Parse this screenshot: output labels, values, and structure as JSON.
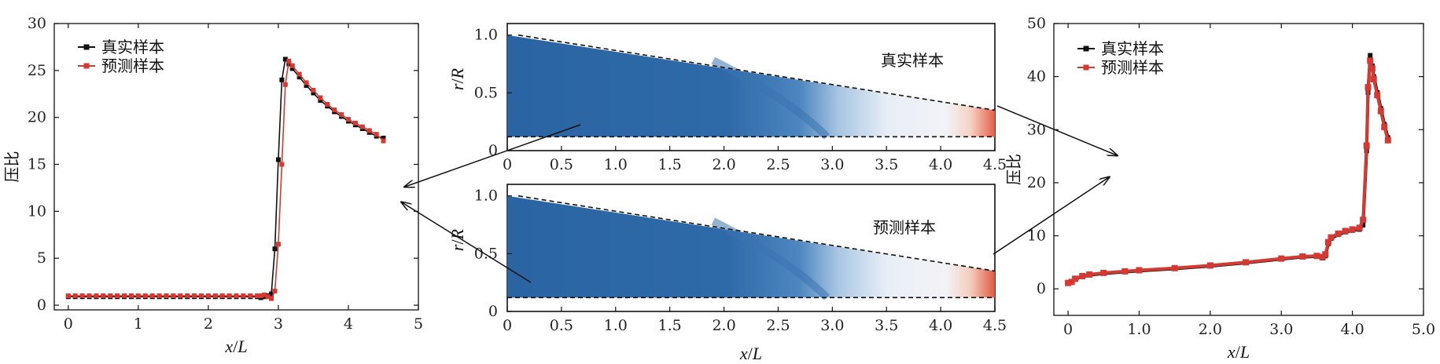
{
  "colors": {
    "true_series": "#111111",
    "pred_series": "#d23b33",
    "contour_dark": "#2a64a3",
    "contour_light": "#f6f7f9",
    "contour_warm": "#e5604a"
  },
  "chart_data": [
    {
      "type": "line",
      "xlabel": "x/L",
      "ylabel": "压比",
      "xlim": [
        -0.2,
        5
      ],
      "ylim": [
        -0.5,
        30
      ],
      "xticks": [
        "0",
        "1",
        "2",
        "3",
        "4",
        "5"
      ],
      "yticks": [
        "0",
        "5",
        "10",
        "15",
        "20",
        "25",
        "30"
      ],
      "legend": "top-left",
      "series": [
        {
          "name": "真实样本",
          "color": "#111111",
          "x": [
            0,
            0.1,
            0.2,
            0.3,
            0.4,
            0.5,
            0.6,
            0.7,
            0.8,
            0.9,
            1.0,
            1.1,
            1.2,
            1.3,
            1.4,
            1.5,
            1.6,
            1.7,
            1.8,
            1.9,
            2.0,
            2.1,
            2.2,
            2.3,
            2.4,
            2.5,
            2.6,
            2.7,
            2.75,
            2.8,
            2.85,
            2.9,
            2.95,
            3.0,
            3.05,
            3.1,
            3.15,
            3.2,
            3.3,
            3.4,
            3.5,
            3.6,
            3.7,
            3.8,
            3.9,
            4.0,
            4.1,
            4.2,
            4.3,
            4.4,
            4.5
          ],
          "y": [
            0.9,
            0.9,
            0.9,
            0.9,
            0.9,
            0.9,
            0.9,
            0.9,
            0.9,
            0.9,
            0.9,
            0.9,
            0.9,
            0.9,
            0.9,
            0.9,
            0.9,
            0.9,
            0.9,
            0.9,
            0.9,
            0.9,
            0.9,
            0.9,
            0.9,
            0.9,
            0.9,
            0.9,
            0.8,
            0.9,
            1.0,
            1.2,
            6.0,
            15.5,
            24.0,
            26.2,
            25.7,
            25.2,
            24.3,
            23.4,
            22.6,
            21.8,
            21.2,
            20.6,
            20.1,
            19.6,
            19.2,
            18.8,
            18.4,
            18.0,
            17.8
          ]
        },
        {
          "name": "预测样本",
          "color": "#d23b33",
          "x": [
            0,
            0.1,
            0.2,
            0.3,
            0.4,
            0.5,
            0.6,
            0.7,
            0.8,
            0.9,
            1.0,
            1.1,
            1.2,
            1.3,
            1.4,
            1.5,
            1.6,
            1.7,
            1.8,
            1.9,
            2.0,
            2.1,
            2.2,
            2.3,
            2.4,
            2.5,
            2.6,
            2.7,
            2.75,
            2.8,
            2.85,
            2.9,
            2.95,
            3.0,
            3.05,
            3.1,
            3.15,
            3.2,
            3.3,
            3.4,
            3.5,
            3.6,
            3.7,
            3.8,
            3.9,
            4.0,
            4.1,
            4.2,
            4.3,
            4.4,
            4.5
          ],
          "y": [
            1.0,
            1.0,
            1.0,
            1.0,
            1.0,
            1.0,
            1.0,
            1.0,
            1.0,
            1.0,
            1.0,
            1.0,
            1.0,
            1.0,
            1.0,
            1.0,
            1.0,
            1.0,
            1.0,
            1.0,
            1.0,
            1.0,
            1.0,
            1.0,
            1.0,
            1.0,
            1.0,
            1.0,
            1.0,
            1.1,
            0.9,
            0.7,
            1.5,
            6.5,
            15.0,
            23.5,
            26.0,
            25.5,
            24.6,
            23.7,
            22.9,
            22.1,
            21.4,
            20.8,
            20.3,
            19.8,
            19.4,
            19.0,
            18.6,
            18.2,
            17.5
          ]
        }
      ]
    },
    {
      "type": "heatmap",
      "title": "真实样本",
      "xlabel": "x/L",
      "ylabel": "r/R",
      "xlim": [
        0,
        4.5
      ],
      "ylim": [
        0,
        1.1
      ],
      "xticks": [
        "0",
        "0.5",
        "1.0",
        "1.5",
        "2.0",
        "2.5",
        "3.0",
        "3.5",
        "4.0",
        "4.5"
      ],
      "yticks": [
        "0",
        "0.5",
        "1.0"
      ],
      "upper_wall": [
        [
          0,
          1.0
        ],
        [
          4.5,
          0.35
        ]
      ],
      "lower_wall": [
        [
          0,
          0.12
        ],
        [
          4.5,
          0.12
        ]
      ]
    },
    {
      "type": "heatmap",
      "title": "预测样本",
      "xlabel": "x/L",
      "ylabel": "r/R",
      "xlim": [
        0,
        4.5
      ],
      "ylim": [
        0,
        1.1
      ],
      "xticks": [
        "0",
        "0.5",
        "1.0",
        "1.5",
        "2.0",
        "2.5",
        "3.0",
        "3.5",
        "4.0",
        "4.5"
      ],
      "yticks": [
        "0",
        "0.5",
        "1.0"
      ],
      "upper_wall": [
        [
          0,
          1.0
        ],
        [
          4.5,
          0.35
        ]
      ],
      "lower_wall": [
        [
          0,
          0.12
        ],
        [
          4.5,
          0.12
        ]
      ]
    },
    {
      "type": "line",
      "xlabel": "x/L",
      "ylabel": "压比",
      "xlim": [
        -0.2,
        5.0
      ],
      "ylim": [
        -5,
        50
      ],
      "xticks": [
        "0",
        "1.0",
        "2.0",
        "3.0",
        "4.0",
        "5.0"
      ],
      "yticks": [
        "0",
        "10",
        "20",
        "30",
        "40",
        "50"
      ],
      "legend": "top-left",
      "series": [
        {
          "name": "真实样本",
          "color": "#111111",
          "x": [
            0,
            0.05,
            0.1,
            0.2,
            0.3,
            0.5,
            0.8,
            1.0,
            1.5,
            2.0,
            2.5,
            3.0,
            3.3,
            3.5,
            3.58,
            3.62,
            3.66,
            3.7,
            3.8,
            3.9,
            4.0,
            4.1,
            4.15,
            4.2,
            4.22,
            4.25,
            4.28,
            4.3,
            4.35,
            4.4,
            4.45,
            4.5
          ],
          "y": [
            1.0,
            1.2,
            1.8,
            2.3,
            2.6,
            2.9,
            3.2,
            3.4,
            3.8,
            4.3,
            4.9,
            5.6,
            6.0,
            6.1,
            5.8,
            6.2,
            8.5,
            9.5,
            10.2,
            10.7,
            11.0,
            11.2,
            12.0,
            26.0,
            37.0,
            44.0,
            42.0,
            40.0,
            37.0,
            34.0,
            31.0,
            28.5
          ]
        },
        {
          "name": "预测样本",
          "color": "#d23b33",
          "x": [
            0,
            0.05,
            0.1,
            0.2,
            0.3,
            0.5,
            0.8,
            1.0,
            1.5,
            2.0,
            2.5,
            3.0,
            3.3,
            3.5,
            3.58,
            3.62,
            3.66,
            3.7,
            3.8,
            3.9,
            4.0,
            4.1,
            4.15,
            4.2,
            4.22,
            4.25,
            4.28,
            4.3,
            4.35,
            4.4,
            4.45,
            4.5
          ],
          "y": [
            1.1,
            1.3,
            1.9,
            2.4,
            2.7,
            3.0,
            3.3,
            3.5,
            3.9,
            4.4,
            5.0,
            5.7,
            6.1,
            6.2,
            6.0,
            6.5,
            8.8,
            9.7,
            10.4,
            10.9,
            11.2,
            11.5,
            13.0,
            27.0,
            38.0,
            43.0,
            41.5,
            39.5,
            36.5,
            33.5,
            30.5,
            28.0
          ]
        }
      ]
    }
  ]
}
